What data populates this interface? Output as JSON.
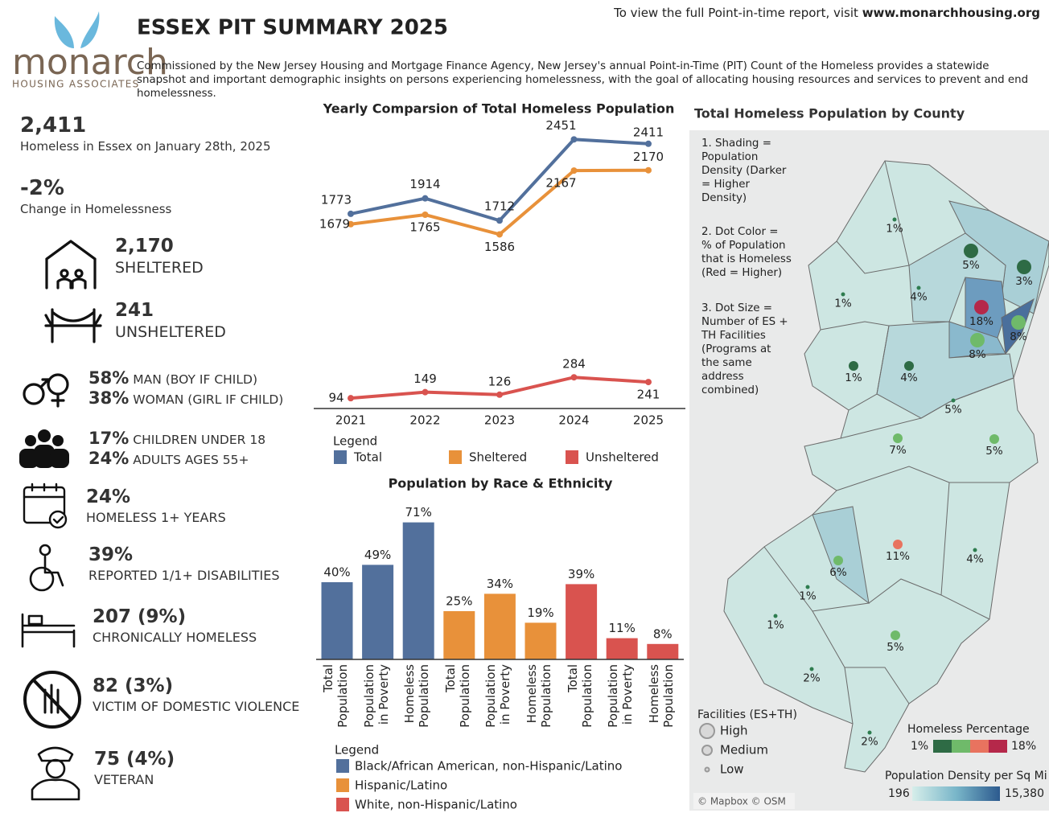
{
  "header": {
    "logo_name": "monarch",
    "logo_sub": "HOUSING ASSOCIATES",
    "title": "ESSEX PIT SUMMARY 2025",
    "link_prefix": "To view the full Point-in-time report, visit",
    "link": "www.monarchhousing.org",
    "description": "Commissioned by the New Jersey Housing and Mortgage Finance Agency, New Jersey's annual Point-in-Time (PIT) Count of the Homeless provides a statewide snapshot and important demographic insights on persons experiencing homelessness, with the goal of allocating housing resources and services to prevent and end homelessness."
  },
  "summary": [
    {
      "value": "2,411",
      "label": "Homeless in Essex on January 28th, 2025"
    },
    {
      "value": "-2%",
      "label": "Change in Homelessness"
    }
  ],
  "stats": [
    {
      "value": "2,170",
      "label": "SHELTERED"
    },
    {
      "value": "241",
      "label": "UNSHELTERED"
    },
    {
      "value": "58%",
      "label": "MAN (BOY IF CHILD)"
    },
    {
      "value": "38%",
      "label": "WOMAN (GIRL IF CHILD)"
    },
    {
      "value": "17%",
      "label": "CHILDREN UNDER 18"
    },
    {
      "value": "24%",
      "label": "ADULTS AGES 55+"
    },
    {
      "value": "24%",
      "label": "HOMELESS 1+ YEARS"
    },
    {
      "value": "39%",
      "label": "REPORTED 1/1+ DISABILITIES"
    },
    {
      "value": "207 (9%)",
      "label": "CHRONICALLY HOMELESS"
    },
    {
      "value": "82 (3%)",
      "label": "VICTIM OF DOMESTIC VIOLENCE"
    },
    {
      "value": "75 (4%)",
      "label": "VETERAN"
    }
  ],
  "chart_data": [
    {
      "type": "line",
      "title": "Yearly Comparsion of Total Homeless Population",
      "categories": [
        "2021",
        "2022",
        "2023",
        "2024",
        "2025"
      ],
      "series": [
        {
          "name": "Total",
          "color": "#52709c",
          "values": [
            1773,
            1914,
            1712,
            2451,
            2411
          ]
        },
        {
          "name": "Sheltered",
          "color": "#e8913a",
          "values": [
            1679,
            1765,
            1586,
            2167,
            2170
          ]
        },
        {
          "name": "Unsheltered",
          "color": "#d9534f",
          "values": [
            94,
            149,
            126,
            284,
            241
          ]
        }
      ],
      "ylim": [
        0,
        2600
      ],
      "legend_title": "Legend"
    },
    {
      "type": "bar",
      "title": "Population by Race & Ethnicity",
      "categories": [
        "Total Population",
        "Population in Poverty",
        "Homeless Population"
      ],
      "series": [
        {
          "name": "Black/African American, non-Hispanic/Latino",
          "color": "#52709c",
          "values": [
            40,
            49,
            71
          ],
          "value_labels": [
            "40%",
            "49%",
            "71%"
          ]
        },
        {
          "name": "Hispanic/Latino",
          "color": "#e8913a",
          "values": [
            25,
            34,
            19
          ],
          "value_labels": [
            "25%",
            "34%",
            "19%"
          ]
        },
        {
          "name": "White, non-Hispanic/Latino",
          "color": "#d9534f",
          "values": [
            39,
            11,
            8
          ],
          "value_labels": [
            "39%",
            "11%",
            "8%"
          ]
        }
      ],
      "ylim": [
        0,
        75
      ],
      "legend_title": "Legend"
    }
  ],
  "map": {
    "title": "Total Homeless Population by County",
    "notes": [
      "1. Shading = Population Density (Darker = Higher Density)",
      "2. Dot Color = % of Population that is Homeless (Red = Higher)",
      "3. Dot Size = Number of ES + TH Facilities (Programs at the same address combined)"
    ],
    "values": [
      1,
      5,
      3,
      1,
      4,
      18,
      8,
      8,
      1,
      4,
      5,
      7,
      5,
      11,
      4,
      6,
      1,
      1,
      5,
      2,
      2
    ],
    "value_labels": [
      "1%",
      "5%",
      "3%",
      "1%",
      "4%",
      "18%",
      "8%",
      "8%",
      "1%",
      "4%",
      "5%",
      "7%",
      "5%",
      "11%",
      "4%",
      "6%",
      "1%",
      "1%",
      "5%",
      "2%",
      "2%"
    ],
    "colors": [
      "#2e7d4f",
      "#2e6b45",
      "#2e6b45",
      "#2e7d4f",
      "#2e7d4f",
      "#b5284a",
      "#6fba6a",
      "#6fba6a",
      "#2e6b45",
      "#2e6b45",
      "#2e7d4f",
      "#6fba6a",
      "#6fba6a",
      "#e8735f",
      "#2e7d4f",
      "#6fba6a",
      "#2e7d4f",
      "#2e7d4f",
      "#6fba6a",
      "#2e7d4f",
      "#2e7d4f"
    ],
    "sizes": [
      "Low",
      "High",
      "High",
      "Low",
      "Low",
      "High",
      "High",
      "High",
      "Medium",
      "Medium",
      "Low",
      "Medium",
      "Medium",
      "Medium",
      "Low",
      "Medium",
      "Low",
      "Low",
      "Medium",
      "Low",
      "Low"
    ],
    "size_title": "Facilities (ES+TH)",
    "size_levels": [
      "High",
      "Medium",
      "Low"
    ],
    "color_title": "Homeless Percentage",
    "color_min": "1%",
    "color_max": "18%",
    "density_title": "Population Density per Sq Mi",
    "density_min": "196",
    "density_max": "15,380",
    "attribution": "© Mapbox © OSM"
  }
}
